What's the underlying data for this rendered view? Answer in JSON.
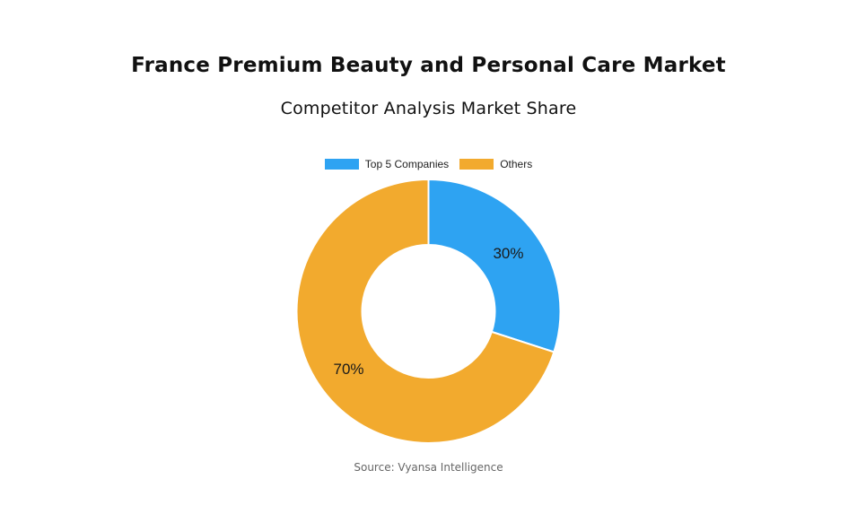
{
  "chart_data": {
    "type": "pie",
    "style": "donut",
    "title": "France Premium Beauty and Personal Care Market",
    "subtitle": "Competitor Analysis Market Share",
    "legend_position": "top",
    "slices": [
      {
        "name": "Top 5 Companies",
        "value": 30,
        "label": "30%",
        "color": "#2ea3f2"
      },
      {
        "name": "Others",
        "value": 70,
        "label": "70%",
        "color": "#f2aa2e"
      }
    ]
  },
  "source": "Source: Vyansa Intelligence"
}
